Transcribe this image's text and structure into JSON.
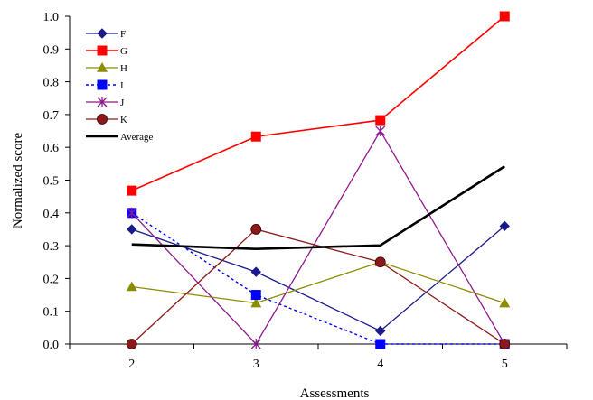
{
  "chart_data": {
    "type": "line",
    "title": "",
    "xlabel": "Assessments",
    "ylabel": "Normalized score",
    "categories": [
      "2",
      "3",
      "4",
      "5"
    ],
    "ylim": [
      0,
      1
    ],
    "yticks": [
      "0.0",
      "0.1",
      "0.2",
      "0.3",
      "0.4",
      "0.5",
      "0.6",
      "0.7",
      "0.8",
      "0.9",
      "1.0"
    ],
    "legend_position": "top-left",
    "grid": false,
    "series": [
      {
        "name": "F",
        "color": "#1a1a8c",
        "marker": "diamond",
        "dash": false,
        "width": 1.3,
        "values": [
          0.35,
          0.22,
          0.04,
          0.36
        ]
      },
      {
        "name": "G",
        "color": "#ff0000",
        "marker": "square",
        "dash": false,
        "width": 1.6,
        "values": [
          0.468,
          0.633,
          0.683,
          1.0
        ]
      },
      {
        "name": "H",
        "color": "#8c8c00",
        "marker": "triangle",
        "dash": false,
        "width": 1.3,
        "values": [
          0.175,
          0.125,
          0.25,
          0.125
        ]
      },
      {
        "name": "I",
        "color": "#0000ff",
        "marker": "square",
        "dash": true,
        "width": 1.4,
        "values": [
          0.4,
          0.15,
          0.0,
          0.0
        ]
      },
      {
        "name": "J",
        "color": "#8c1a8c",
        "marker": "star",
        "dash": false,
        "width": 1.3,
        "values": [
          0.4,
          0.0,
          0.65,
          0.0
        ]
      },
      {
        "name": "K",
        "color": "#8c1a1a",
        "marker": "circle",
        "dash": false,
        "width": 1.3,
        "values": [
          0.0,
          0.35,
          0.25,
          0.0
        ]
      },
      {
        "name": "Average",
        "color": "#000000",
        "marker": "none",
        "dash": false,
        "width": 2.6,
        "values": [
          0.304,
          0.29,
          0.301,
          0.542
        ]
      }
    ]
  }
}
